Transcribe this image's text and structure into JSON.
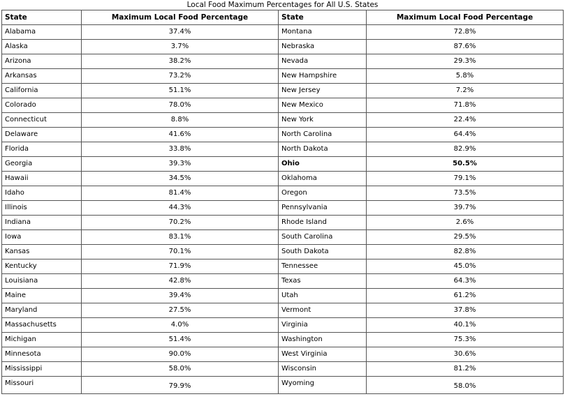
{
  "caption": "Local Food Maximum Percentages for All U.S. States",
  "headers": {
    "state": "State",
    "pct": "Maximum Local Food Percentage",
    "state2": "State",
    "pct2": "Maximum Local Food Percentage"
  },
  "highlight_state": "Ohio",
  "left": [
    {
      "state": "Alabama",
      "pct": "37.4%"
    },
    {
      "state": "Alaska",
      "pct": "3.7%"
    },
    {
      "state": "Arizona",
      "pct": "38.2%"
    },
    {
      "state": "Arkansas",
      "pct": "73.2%"
    },
    {
      "state": "California",
      "pct": "51.1%"
    },
    {
      "state": "Colorado",
      "pct": "78.0%"
    },
    {
      "state": "Connecticut",
      "pct": "8.8%"
    },
    {
      "state": "Delaware",
      "pct": "41.6%"
    },
    {
      "state": "Florida",
      "pct": "33.8%"
    },
    {
      "state": "Georgia",
      "pct": "39.3%"
    },
    {
      "state": "Hawaii",
      "pct": "34.5%"
    },
    {
      "state": "Idaho",
      "pct": "81.4%"
    },
    {
      "state": "Illinois",
      "pct": "44.3%"
    },
    {
      "state": "Indiana",
      "pct": "70.2%"
    },
    {
      "state": "Iowa",
      "pct": "83.1%"
    },
    {
      "state": "Kansas",
      "pct": "70.1%"
    },
    {
      "state": "Kentucky",
      "pct": "71.9%"
    },
    {
      "state": "Louisiana",
      "pct": "42.8%"
    },
    {
      "state": "Maine",
      "pct": "39.4%"
    },
    {
      "state": "Maryland",
      "pct": "27.5%"
    },
    {
      "state": "Massachusetts",
      "pct": "4.0%"
    },
    {
      "state": "Michigan",
      "pct": "51.4%"
    },
    {
      "state": "Minnesota",
      "pct": "90.0%"
    },
    {
      "state": "Mississippi",
      "pct": "58.0%"
    },
    {
      "state": "Missouri",
      "pct": "79.9%"
    }
  ],
  "right": [
    {
      "state": "Montana",
      "pct": "72.8%"
    },
    {
      "state": "Nebraska",
      "pct": "87.6%"
    },
    {
      "state": "Nevada",
      "pct": "29.3%"
    },
    {
      "state": "New Hampshire",
      "pct": "5.8%"
    },
    {
      "state": "New Jersey",
      "pct": "7.2%"
    },
    {
      "state": "New Mexico",
      "pct": "71.8%"
    },
    {
      "state": "New York",
      "pct": "22.4%"
    },
    {
      "state": "North Carolina",
      "pct": "64.4%"
    },
    {
      "state": "North Dakota",
      "pct": "82.9%"
    },
    {
      "state": "Ohio",
      "pct": "50.5%"
    },
    {
      "state": "Oklahoma",
      "pct": "79.1%"
    },
    {
      "state": "Oregon",
      "pct": "73.5%"
    },
    {
      "state": "Pennsylvania",
      "pct": "39.7%"
    },
    {
      "state": "Rhode Island",
      "pct": "2.6%"
    },
    {
      "state": "South Carolina",
      "pct": "29.5%"
    },
    {
      "state": "South Dakota",
      "pct": "82.8%"
    },
    {
      "state": "Tennessee",
      "pct": "45.0%"
    },
    {
      "state": "Texas",
      "pct": "64.3%"
    },
    {
      "state": "Utah",
      "pct": "61.2%"
    },
    {
      "state": "Vermont",
      "pct": "37.8%"
    },
    {
      "state": "Virginia",
      "pct": "40.1%"
    },
    {
      "state": "Washington",
      "pct": "75.3%"
    },
    {
      "state": "West Virginia",
      "pct": "30.6%"
    },
    {
      "state": "Wisconsin",
      "pct": "81.2%"
    },
    {
      "state": "Wyoming",
      "pct": "58.0%"
    }
  ]
}
